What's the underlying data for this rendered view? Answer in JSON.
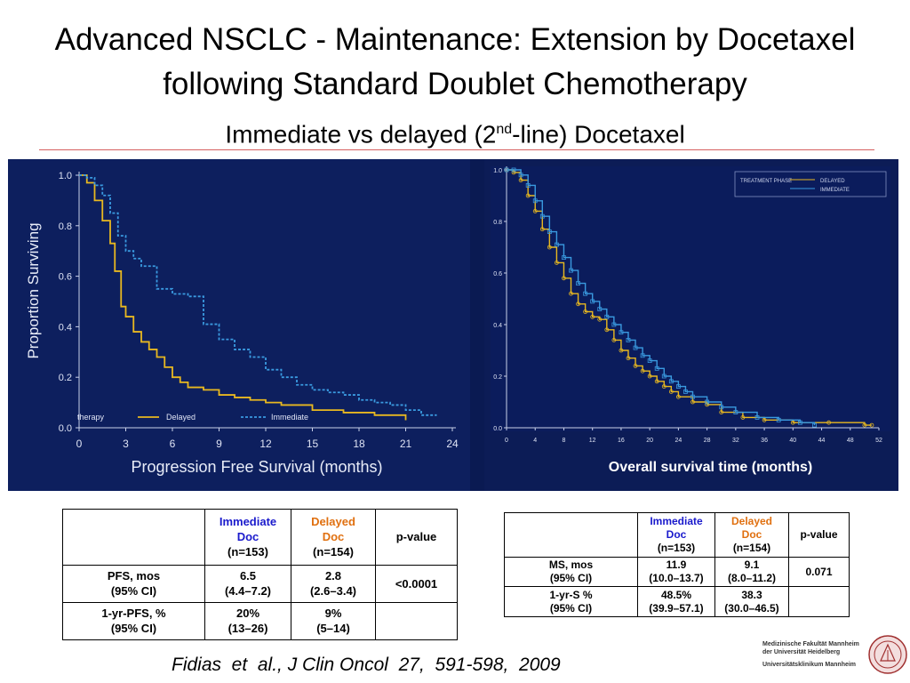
{
  "slide": {
    "title_line1": "Advanced NSCLC - Maintenance: Extension by Docetaxel",
    "title_line2": "following Standard Doublet Chemotherapy",
    "subtitle_pre": "Immediate vs delayed (2",
    "subtitle_sup": "nd",
    "subtitle_post": "-line) Docetaxel",
    "citation": "Fidias  et  al., J Clin Oncol  27,  591-598,  2009",
    "institution": {
      "line1": "Medizinische Fakultät Mannheim",
      "line2": "der Universität Heidelberg",
      "line3": "Universitätsklinikum Mannheim"
    }
  },
  "colors": {
    "figure_bg": "#0a1a52",
    "delayed": "#e8b820",
    "immediate": "#3a9ae0",
    "immediate_label": "#1a1acc",
    "delayed_label": "#e07010"
  },
  "chart_data": [
    {
      "type": "line",
      "name": "pfs",
      "xlabel": "Progression Free Survival (months)",
      "ylabel": "Proportion Surviving",
      "xlim": [
        0,
        24
      ],
      "ylim": [
        0,
        1
      ],
      "xticks": [
        "0",
        "3",
        "6",
        "9",
        "12",
        "15",
        "18",
        "21",
        "24"
      ],
      "yticks": [
        "0.0",
        "0.2",
        "0.4",
        "0.6",
        "0.8",
        "1.0"
      ],
      "legend_title": "therapy",
      "legend_placement": "bottom",
      "series": [
        {
          "name": "Delayed",
          "style": "solid",
          "x": [
            0,
            0.5,
            1,
            1.5,
            2,
            2.3,
            2.7,
            3,
            3.5,
            4,
            4.5,
            5,
            5.5,
            6,
            6.5,
            7,
            8,
            9,
            10,
            11,
            12,
            13,
            15,
            17,
            19,
            21
          ],
          "y": [
            1.0,
            0.97,
            0.9,
            0.82,
            0.73,
            0.62,
            0.48,
            0.44,
            0.38,
            0.34,
            0.31,
            0.28,
            0.24,
            0.2,
            0.18,
            0.16,
            0.15,
            0.13,
            0.12,
            0.11,
            0.1,
            0.09,
            0.07,
            0.06,
            0.05,
            0.03
          ]
        },
        {
          "name": "Immediate",
          "style": "dashed",
          "x": [
            0,
            0.5,
            1,
            1.5,
            2,
            2.5,
            3,
            3.5,
            4,
            5,
            6,
            7,
            8,
            9,
            10,
            11,
            12,
            13,
            14,
            15,
            16,
            17,
            18,
            19,
            20,
            21,
            22,
            23
          ],
          "y": [
            1.0,
            0.99,
            0.96,
            0.92,
            0.85,
            0.76,
            0.7,
            0.67,
            0.64,
            0.55,
            0.53,
            0.52,
            0.41,
            0.35,
            0.31,
            0.28,
            0.23,
            0.2,
            0.17,
            0.15,
            0.14,
            0.13,
            0.11,
            0.1,
            0.09,
            0.07,
            0.05,
            0.05
          ]
        }
      ]
    },
    {
      "type": "line",
      "name": "os",
      "xlabel": "Overall survival time (months)",
      "ylabel": "",
      "xlim": [
        0,
        52
      ],
      "ylim": [
        0,
        1
      ],
      "xticks": [
        "0",
        "4",
        "8",
        "12",
        "16",
        "20",
        "24",
        "28",
        "32",
        "36",
        "40",
        "44",
        "48",
        "52"
      ],
      "yticks": [
        "0.0",
        "0.2",
        "0.4",
        "0.6",
        "0.8",
        "1.0"
      ],
      "legend_title": "TREATMENT PHASE",
      "legend_placement": "top-right",
      "series": [
        {
          "name": "DELAYED",
          "style": "circles",
          "x": [
            0,
            1,
            2,
            3,
            4,
            5,
            6,
            7,
            8,
            9,
            10,
            11,
            12,
            13,
            14,
            15,
            16,
            17,
            18,
            19,
            20,
            21,
            22,
            23,
            24,
            26,
            28,
            30,
            33,
            36,
            40,
            45,
            50,
            51
          ],
          "y": [
            1.0,
            0.99,
            0.96,
            0.9,
            0.84,
            0.77,
            0.7,
            0.64,
            0.58,
            0.52,
            0.48,
            0.45,
            0.43,
            0.42,
            0.38,
            0.34,
            0.3,
            0.27,
            0.24,
            0.22,
            0.2,
            0.18,
            0.16,
            0.14,
            0.12,
            0.1,
            0.09,
            0.06,
            0.04,
            0.03,
            0.02,
            0.02,
            0.01,
            0.01
          ]
        },
        {
          "name": "IMMEDIATE",
          "style": "squares",
          "x": [
            0,
            1,
            2,
            3,
            4,
            5,
            6,
            7,
            8,
            9,
            10,
            11,
            12,
            13,
            14,
            15,
            16,
            17,
            18,
            19,
            20,
            21,
            22,
            23,
            24,
            25,
            26,
            28,
            30,
            32,
            35,
            38,
            41,
            43
          ],
          "y": [
            1.0,
            1.0,
            0.98,
            0.94,
            0.88,
            0.82,
            0.76,
            0.71,
            0.66,
            0.61,
            0.56,
            0.52,
            0.49,
            0.46,
            0.43,
            0.4,
            0.37,
            0.34,
            0.31,
            0.28,
            0.26,
            0.23,
            0.2,
            0.18,
            0.16,
            0.14,
            0.12,
            0.1,
            0.08,
            0.06,
            0.04,
            0.03,
            0.02,
            0.01
          ]
        }
      ]
    }
  ],
  "table1": {
    "header": {
      "blank": "",
      "immediate": [
        "Immediate",
        "Doc",
        "(n=153)"
      ],
      "delayed": [
        "Delayed",
        "Doc",
        "(n=154)"
      ],
      "pvalue": "p-value"
    },
    "rows": [
      {
        "label": [
          "PFS, mos",
          "(95% CI)"
        ],
        "immediate": [
          "6.5",
          "(4.4–7.2)"
        ],
        "delayed": [
          "2.8",
          "(2.6–3.4)"
        ],
        "pvalue": "<0.0001"
      },
      {
        "label": [
          "1-yr-PFS, %",
          "(95% CI)"
        ],
        "immediate": [
          "20%",
          "(13–26)"
        ],
        "delayed": [
          "9%",
          "(5–14)"
        ],
        "pvalue": ""
      }
    ]
  },
  "table2": {
    "header": {
      "blank": "",
      "immediate": [
        "Immediate",
        "Doc",
        "(n=153)"
      ],
      "delayed": [
        "Delayed",
        "Doc",
        "(n=154)"
      ],
      "pvalue": "p-value"
    },
    "rows": [
      {
        "label": [
          "MS, mos",
          "(95% CI)"
        ],
        "immediate": [
          "11.9",
          "(10.0–13.7)"
        ],
        "delayed": [
          "9.1",
          "(8.0–11.2)"
        ],
        "pvalue": "0.071"
      },
      {
        "label": [
          "1-yr-S %",
          "(95% CI)"
        ],
        "immediate": [
          "48.5%",
          "(39.9–57.1)"
        ],
        "delayed": [
          "38.3",
          "(30.0–46.5)"
        ],
        "pvalue": ""
      }
    ]
  }
}
